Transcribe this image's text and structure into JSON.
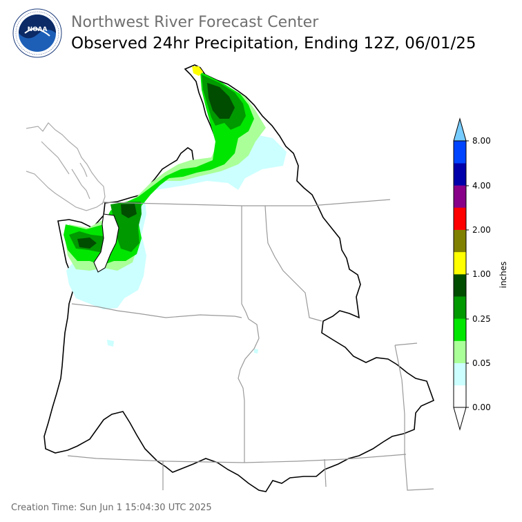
{
  "header": {
    "agency_subtitle": "Northwest River Forecast Center",
    "title": "Observed 24hr Precipitation, Ending 12Z, 06/01/25",
    "logo_text": "NOAA",
    "logo_ring_text": "NATIONAL OCEANIC AND ATMOSPHERIC ADMINISTRATION • U.S. DEPARTMENT OF COMMERCE"
  },
  "legend": {
    "unit_label": "inches",
    "tick_labels": [
      "0.00",
      "0.05",
      "0.25",
      "1.00",
      "2.00",
      "4.00",
      "8.00"
    ],
    "bins": [
      {
        "color": "#ffffff"
      },
      {
        "color": "#ccffff"
      },
      {
        "color": "#aaff99"
      },
      {
        "color": "#00e600"
      },
      {
        "color": "#009900"
      },
      {
        "color": "#004d00"
      },
      {
        "color": "#ffff00"
      },
      {
        "color": "#808000"
      },
      {
        "color": "#ff0000"
      },
      {
        "color": "#880088"
      },
      {
        "color": "#0000aa"
      },
      {
        "color": "#0044ff"
      }
    ],
    "under_color": "#ffffff",
    "over_color": "#77ccff"
  },
  "map": {
    "region": "Pacific Northwest",
    "boundary_color": "#000000",
    "state_line_color": "#999999",
    "coast_color": "#aaaaaa"
  },
  "footer": {
    "creation_time": "Creation Time: Sun Jun 1 15:04:30 UTC 2025"
  }
}
